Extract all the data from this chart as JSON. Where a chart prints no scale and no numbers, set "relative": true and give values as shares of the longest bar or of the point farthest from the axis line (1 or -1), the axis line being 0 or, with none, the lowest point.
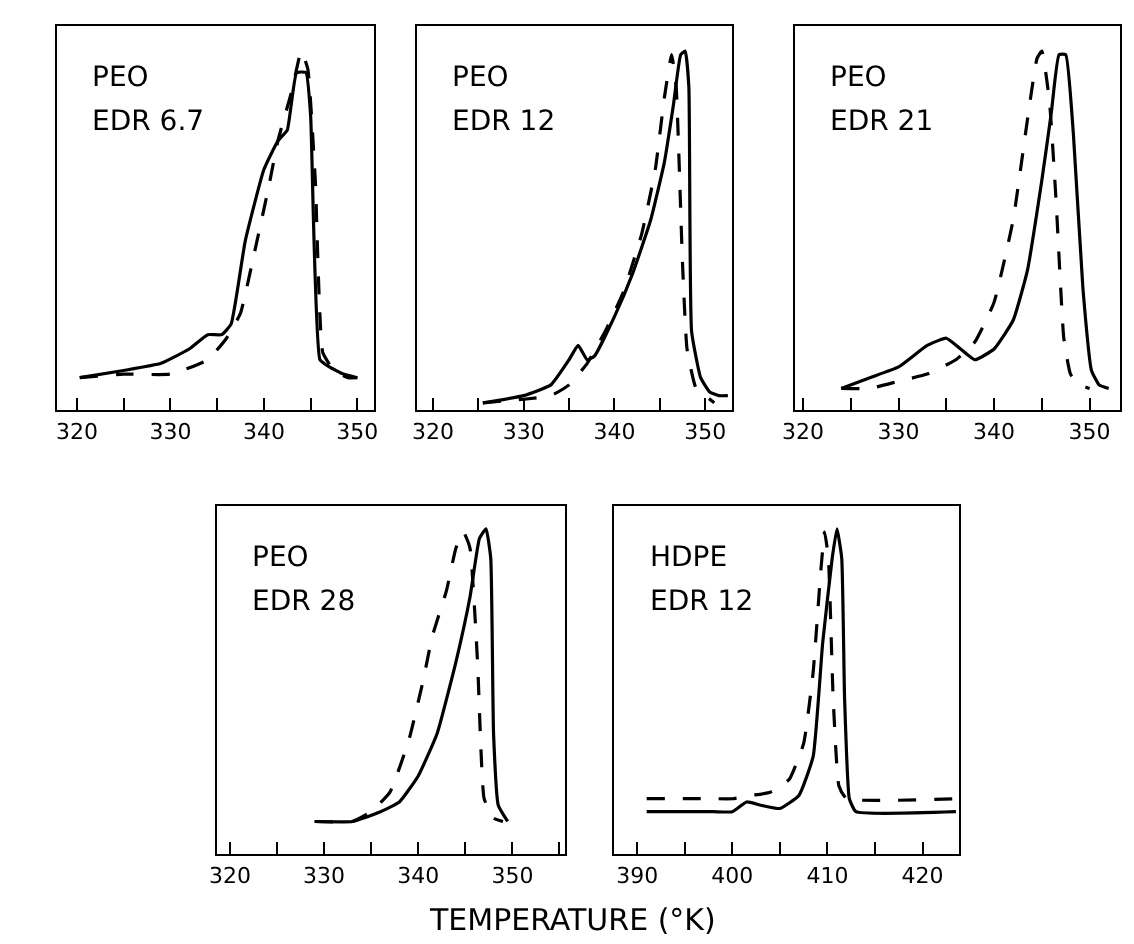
{
  "chart_data": [
    {
      "type": "line",
      "relative": true,
      "annotations": [
        "PEO",
        "EDR 6.7"
      ],
      "xlim": [
        317.9,
        351.8
      ],
      "xticks": [
        320,
        {
          "value": 325,
          "label": null
        },
        330,
        {
          "value": 335,
          "label": null
        },
        340,
        {
          "value": 345,
          "label": null
        },
        350
      ],
      "tick_labels": "x",
      "series": [
        {
          "color": "#000000",
          "line_style": "solid",
          "x": [
            320.3,
            325,
            329,
            332,
            334,
            335.5,
            336.5,
            338,
            340,
            341.5,
            342.5,
            343.5,
            344.5,
            345,
            346,
            347,
            348.5,
            350
          ],
          "values": [
            0.09,
            0.11,
            0.13,
            0.17,
            0.21,
            0.21,
            0.24,
            0.47,
            0.67,
            0.75,
            0.78,
            0.94,
            0.94,
            0.82,
            0.14,
            0.12,
            0.1,
            0.09
          ]
        },
        {
          "color": "#000000",
          "line_style": "dashed",
          "x": [
            320.3,
            325,
            330,
            334,
            336,
            337.5,
            339,
            340.5,
            341.5,
            343,
            344,
            344.7,
            345.5,
            346.3,
            347.5,
            349,
            350
          ],
          "values": [
            0.09,
            0.1,
            0.1,
            0.14,
            0.2,
            0.27,
            0.44,
            0.62,
            0.75,
            0.89,
            1.0,
            0.95,
            0.64,
            0.16,
            0.11,
            0.09,
            0.09
          ]
        }
      ]
    },
    {
      "type": "line",
      "relative": true,
      "annotations": [
        "PEO",
        "EDR 12"
      ],
      "xlim": [
        318.3,
        353
      ],
      "xticks": [
        320,
        {
          "value": 325,
          "label": null
        },
        330,
        {
          "value": 335,
          "label": null
        },
        340,
        {
          "value": 345,
          "label": null
        },
        350
      ],
      "tick_labels": "x",
      "series": [
        {
          "color": "#000000",
          "line_style": "solid",
          "x": [
            325.5,
            330,
            333,
            335,
            336,
            337,
            337.8,
            340,
            342,
            344,
            345.5,
            346.5,
            347.3,
            347.8,
            348.2,
            348.5,
            349.5,
            350.5,
            351.5,
            352.5
          ],
          "values": [
            0.02,
            0.04,
            0.07,
            0.14,
            0.18,
            0.14,
            0.15,
            0.26,
            0.38,
            0.53,
            0.69,
            0.85,
            0.99,
            1.0,
            0.9,
            0.22,
            0.09,
            0.05,
            0.04,
            0.04
          ]
        },
        {
          "color": "#000000",
          "line_style": "dashed",
          "x": [
            325.5,
            330,
            333,
            335,
            337,
            339,
            341,
            343,
            344.5,
            345.5,
            346.3,
            346.8,
            347.5,
            348,
            349,
            350.5,
            351
          ],
          "values": [
            0.02,
            0.03,
            0.04,
            0.07,
            0.13,
            0.22,
            0.33,
            0.49,
            0.67,
            0.87,
            0.99,
            0.9,
            0.41,
            0.17,
            0.06,
            0.03,
            0.02
          ]
        }
      ]
    },
    {
      "type": "line",
      "relative": true,
      "annotations": [
        "PEO",
        "EDR 21"
      ],
      "xlim": [
        319.2,
        353.2
      ],
      "xticks": [
        320,
        {
          "value": 325,
          "label": null
        },
        330,
        {
          "value": 335,
          "label": null
        },
        340,
        {
          "value": 345,
          "label": null
        },
        350
      ],
      "tick_labels": "x",
      "series": [
        {
          "color": "#000000",
          "line_style": "solid",
          "x": [
            324,
            327,
            330,
            333,
            335,
            336.5,
            338,
            340,
            342,
            343.5,
            345,
            346,
            346.8,
            347.5,
            348.3,
            349.3,
            350.2,
            351,
            352
          ],
          "values": [
            0.06,
            0.09,
            0.12,
            0.18,
            0.2,
            0.17,
            0.14,
            0.17,
            0.25,
            0.39,
            0.64,
            0.83,
            0.99,
            0.99,
            0.77,
            0.34,
            0.11,
            0.07,
            0.06
          ]
        },
        {
          "color": "#000000",
          "line_style": "dashed",
          "x": [
            324,
            327,
            330,
            333,
            336,
            338,
            340,
            342,
            343.5,
            344.5,
            345,
            345.8,
            346.5,
            347.3,
            348,
            349,
            350
          ],
          "values": [
            0.06,
            0.06,
            0.08,
            0.1,
            0.14,
            0.19,
            0.3,
            0.53,
            0.81,
            0.98,
            1.0,
            0.86,
            0.58,
            0.2,
            0.1,
            0.07,
            0.06
          ]
        }
      ]
    },
    {
      "type": "line",
      "relative": true,
      "annotations": [
        "PEO",
        "EDR 28"
      ],
      "xlabel": "TEMPERATURE (°K)",
      "xlim": [
        318.6,
        355.6
      ],
      "xticks": [
        320,
        {
          "value": 325,
          "label": null
        },
        330,
        {
          "value": 335,
          "label": null
        },
        340,
        {
          "value": 345,
          "label": null
        },
        350,
        {
          "value": 355,
          "label": null
        }
      ],
      "tick_labels": "x",
      "series": [
        {
          "color": "#000000",
          "line_style": "solid",
          "x": [
            329,
            333,
            336,
            338,
            340,
            342,
            344,
            345.5,
            346.5,
            347.2,
            347.7,
            348,
            348.5,
            349.5
          ],
          "values": [
            0.1,
            0.1,
            0.13,
            0.16,
            0.24,
            0.37,
            0.59,
            0.79,
            0.97,
            1.0,
            0.91,
            0.37,
            0.15,
            0.1
          ]
        },
        {
          "color": "#000000",
          "line_style": "dashed",
          "x": [
            329,
            333,
            335,
            337,
            339,
            340.5,
            341.5,
            343,
            344,
            344.8,
            345.5,
            346.3,
            347,
            348,
            349
          ],
          "values": [
            0.1,
            0.1,
            0.13,
            0.19,
            0.35,
            0.53,
            0.67,
            0.81,
            0.94,
            0.99,
            0.94,
            0.59,
            0.17,
            0.11,
            0.1
          ]
        }
      ]
    },
    {
      "type": "line",
      "relative": true,
      "annotations": [
        "HDPE",
        "EDR 12"
      ],
      "xlim": [
        387.6,
        423.8
      ],
      "xticks": [
        390,
        {
          "value": 395,
          "label": null
        },
        400,
        {
          "value": 405,
          "label": null
        },
        410,
        {
          "value": 415,
          "label": null
        },
        420
      ],
      "tick_labels": "x",
      "series": [
        {
          "color": "#000000",
          "line_style": "solid",
          "x": [
            391,
            398,
            400,
            401.5,
            403,
            405,
            407,
            408.5,
            409.5,
            410.5,
            411,
            411.5,
            411.8,
            412.3,
            413,
            423.5
          ],
          "values": [
            0.13,
            0.13,
            0.13,
            0.16,
            0.15,
            0.14,
            0.18,
            0.3,
            0.65,
            0.91,
            1.0,
            0.91,
            0.48,
            0.17,
            0.13,
            0.13
          ]
        },
        {
          "color": "#000000",
          "line_style": "dashed",
          "x": [
            391,
            398,
            400,
            402,
            404,
            406,
            407.5,
            408.5,
            409.3,
            409.7,
            410.1,
            410.6,
            411.2,
            412,
            423.5
          ],
          "values": [
            0.17,
            0.17,
            0.17,
            0.18,
            0.19,
            0.23,
            0.34,
            0.56,
            0.87,
            0.99,
            0.91,
            0.48,
            0.21,
            0.17,
            0.17
          ]
        }
      ]
    }
  ]
}
